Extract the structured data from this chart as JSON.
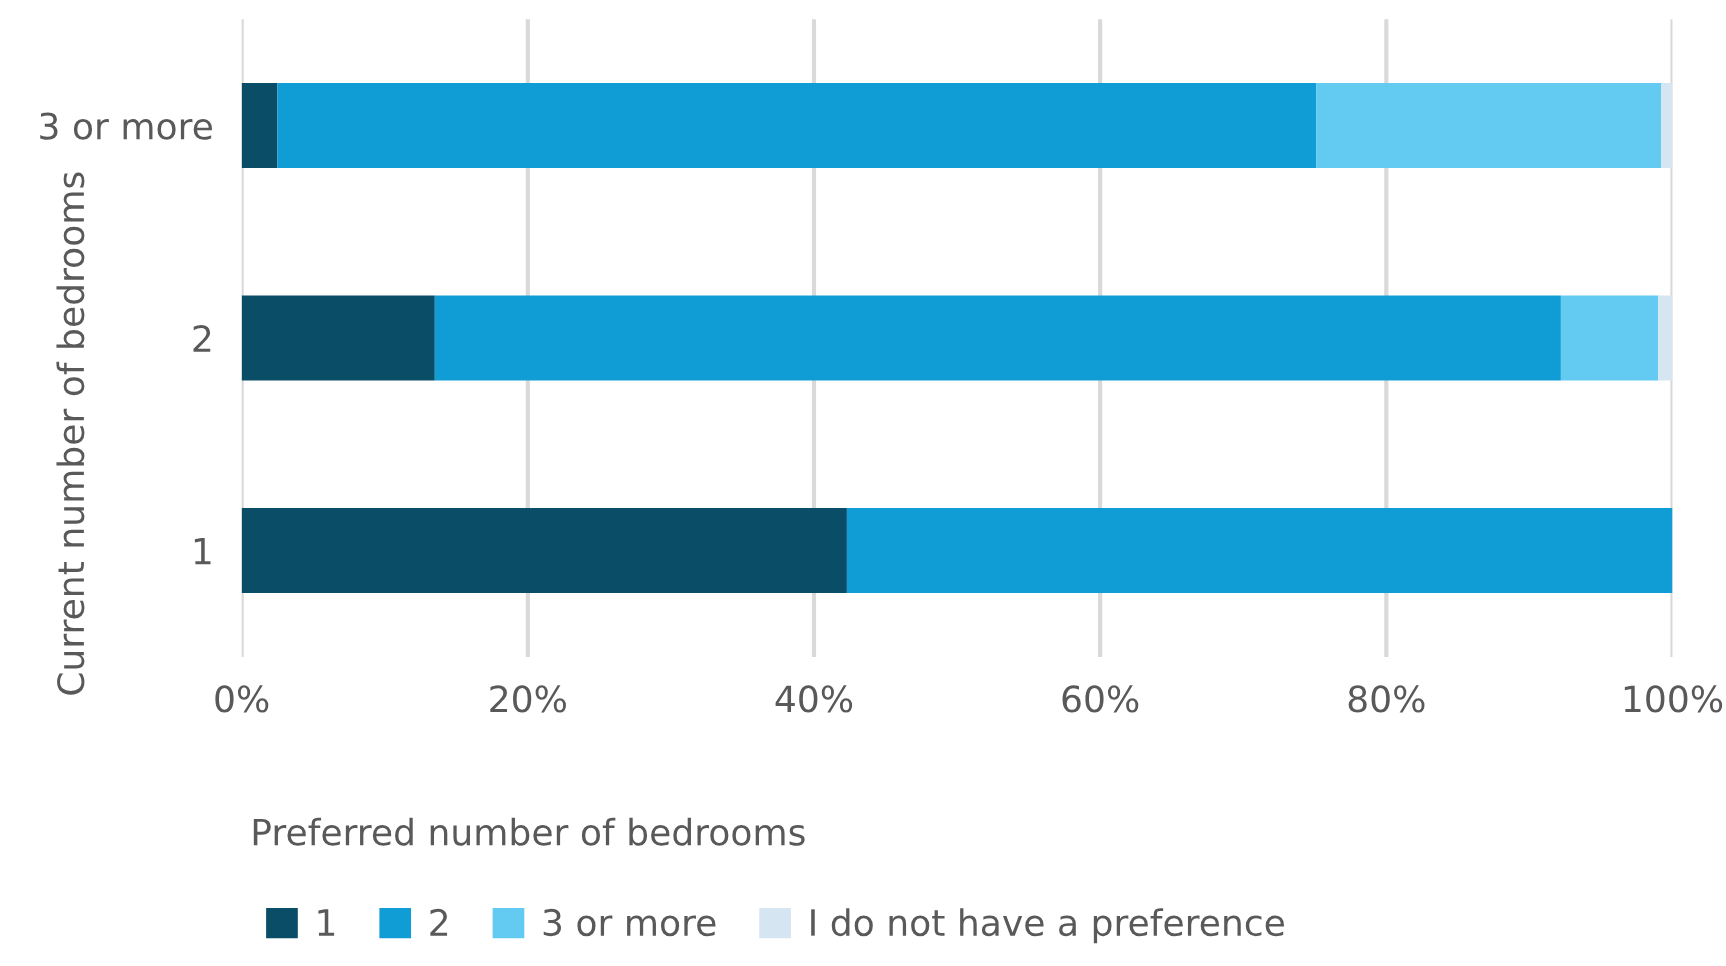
{
  "chart_data": {
    "type": "bar",
    "orientation": "horizontal",
    "stacked": true,
    "categories": [
      "3 or more",
      "2",
      "1"
    ],
    "xlabel": "Preferred number of bedrooms",
    "ylabel": "Current number of bedrooms",
    "xlim": [
      0,
      100
    ],
    "xticks": [
      {
        "value": 0,
        "label": "0%"
      },
      {
        "value": 20,
        "label": "20%"
      },
      {
        "value": 40,
        "label": "40%"
      },
      {
        "value": 60,
        "label": "60%"
      },
      {
        "value": 80,
        "label": "80%"
      },
      {
        "value": 100,
        "label": "100%"
      }
    ],
    "grid": "x",
    "legend": "bottom",
    "series": [
      {
        "name": "1",
        "color": "#0a4d66",
        "values": [
          2.5,
          13.5,
          42.3
        ]
      },
      {
        "name": "2",
        "color": "#109dd5",
        "values": [
          72.6,
          78.7,
          57.7
        ]
      },
      {
        "name": "3 or more",
        "color": "#63caf2",
        "values": [
          24.1,
          6.8,
          0
        ]
      },
      {
        "name": "I do not have a preference",
        "color": "#d5e5f2",
        "values": [
          0.8,
          1.0,
          0
        ]
      }
    ]
  }
}
